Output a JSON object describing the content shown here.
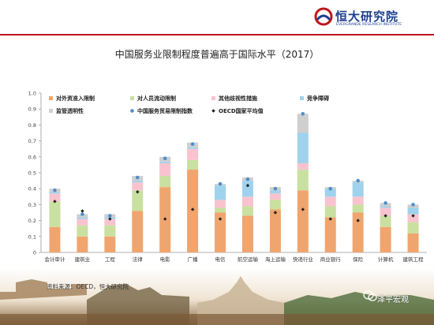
{
  "brand": {
    "name": "恒大研究院",
    "subtitle": "EVERGRANDE RESEARCH INSTITUTE",
    "accent_color": "#c0141b",
    "brand_color": "#1b3f8f"
  },
  "source_note": "资料来源：OECD，恒大研究院",
  "watermark": "泽平宏观",
  "chart_data": {
    "type": "bar",
    "stacked": true,
    "title": "中国服务业限制程度普遍高于国际水平（2017）",
    "xlabel": "",
    "ylabel": "",
    "ylim": [
      0,
      1
    ],
    "yticks": [
      "0",
      "0.1",
      "0.2",
      "0.3",
      "0.4",
      "0.5",
      "0.6",
      "0.7",
      "0.8",
      "0.9",
      "1.0"
    ],
    "grid": false,
    "legend_position": "top",
    "categories": [
      "会计审计",
      "建筑业",
      "工程",
      "法律",
      "电影",
      "广播",
      "电信",
      "航空运输",
      "海上运输",
      "快递行业",
      "商业银行",
      "保险",
      "计算机",
      "建筑工程"
    ],
    "series": [
      {
        "name": "对外资准入限制",
        "color": "#f0a56e",
        "values": [
          0.16,
          0.1,
          0.1,
          0.26,
          0.41,
          0.52,
          0.25,
          0.23,
          0.27,
          0.39,
          0.22,
          0.25,
          0.16,
          0.12
        ]
      },
      {
        "name": "对人员流动限制",
        "color": "#c9e0a0",
        "values": [
          0.16,
          0.07,
          0.07,
          0.13,
          0.07,
          0.06,
          0.03,
          0.06,
          0.06,
          0.13,
          0.07,
          0.05,
          0.07,
          0.07
        ]
      },
      {
        "name": "其他歧视性措施",
        "color": "#f8c3cf",
        "values": [
          0.05,
          0.04,
          0.04,
          0.05,
          0.08,
          0.07,
          0.05,
          0.06,
          0.04,
          0.04,
          0.06,
          0.05,
          0.05,
          0.05
        ]
      },
      {
        "name": "竞争障碍",
        "color": "#9fd2ec",
        "values": [
          0.01,
          0.01,
          0.01,
          0.01,
          0.01,
          0.01,
          0.09,
          0.1,
          0.02,
          0.19,
          0.05,
          0.09,
          0.01,
          0.04
        ]
      },
      {
        "name": "监管透明性",
        "color": "#cfcfcf",
        "values": [
          0.02,
          0.02,
          0.02,
          0.03,
          0.03,
          0.03,
          0.01,
          0.02,
          0.02,
          0.12,
          0.01,
          0.01,
          0.02,
          0.02
        ]
      }
    ],
    "markers": [
      {
        "name": "中国服务贸易限制指数",
        "color": "#4d8fc9",
        "shape": "circle",
        "values": [
          0.39,
          0.24,
          0.23,
          0.47,
          0.59,
          0.68,
          0.43,
          0.46,
          0.4,
          0.87,
          0.4,
          0.45,
          0.31,
          0.3
        ]
      },
      {
        "name": "OECD国家平均值",
        "color": "#222222",
        "shape": "diamond",
        "values": [
          0.32,
          0.26,
          0.21,
          0.38,
          0.21,
          0.27,
          0.21,
          0.42,
          0.25,
          0.27,
          0.21,
          0.2,
          0.23,
          0.23
        ]
      }
    ]
  }
}
